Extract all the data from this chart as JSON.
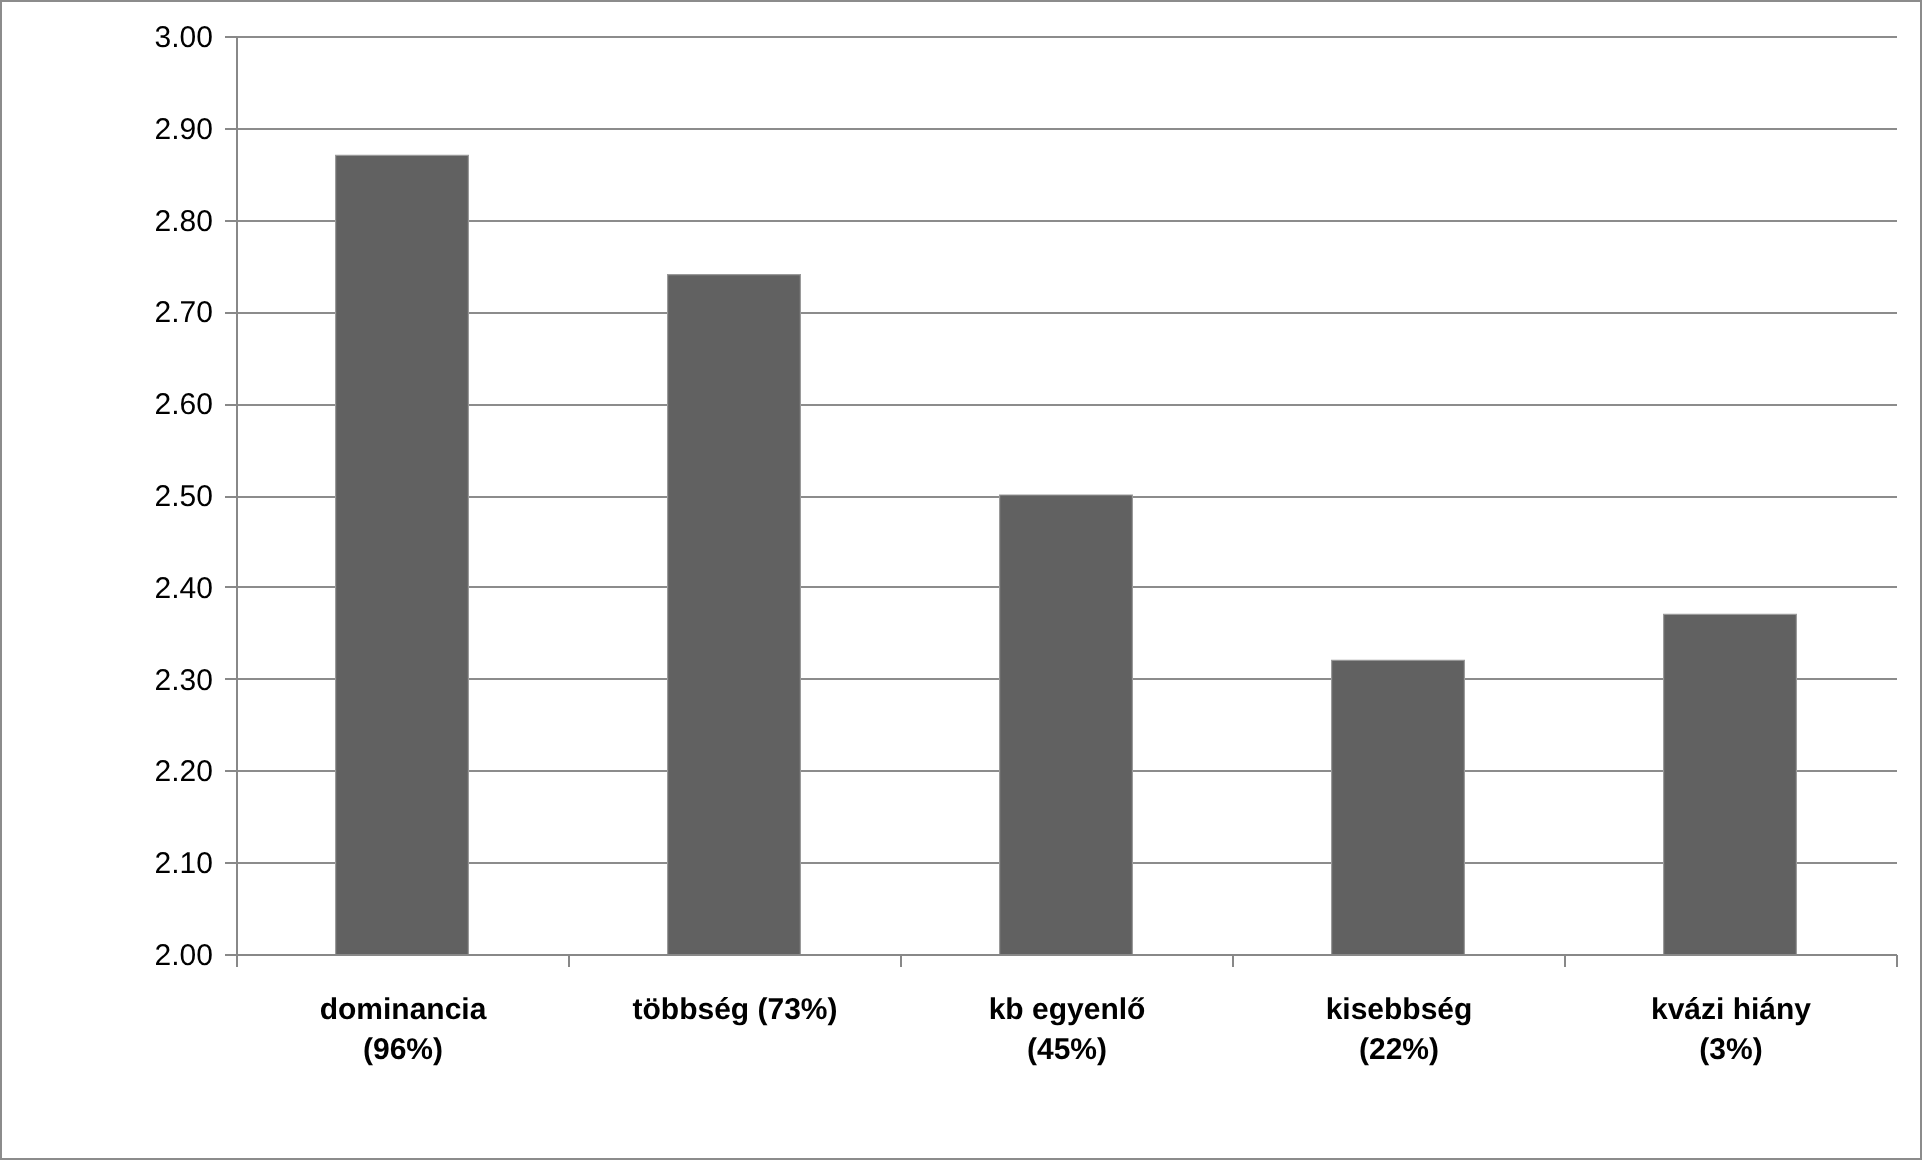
{
  "chart_data": {
    "type": "bar",
    "categories": [
      "dominancia (96%)",
      "többség (73%)",
      "kb egyenlő (45%)",
      "kisebbség (22%)",
      "kvázi hiány (3%)"
    ],
    "values": [
      2.87,
      2.74,
      2.5,
      2.32,
      2.37
    ],
    "color": "#616161",
    "ylim": [
      2,
      3
    ],
    "yticks": [
      {
        "value": 2,
        "label": "2.00"
      },
      {
        "value": 2.1,
        "label": "2.10"
      },
      {
        "value": 2.2,
        "label": "2.20"
      },
      {
        "value": 2.3,
        "label": "2.30"
      },
      {
        "value": 2.4,
        "label": "2.40"
      },
      {
        "value": 2.5,
        "label": "2.50"
      },
      {
        "value": 2.6,
        "label": "2.60"
      },
      {
        "value": 2.7,
        "label": "2.70"
      },
      {
        "value": 2.8,
        "label": "2.80"
      },
      {
        "value": 2.9,
        "label": "2.90"
      },
      {
        "value": 3,
        "label": "3.00"
      }
    ],
    "grid": "y"
  }
}
